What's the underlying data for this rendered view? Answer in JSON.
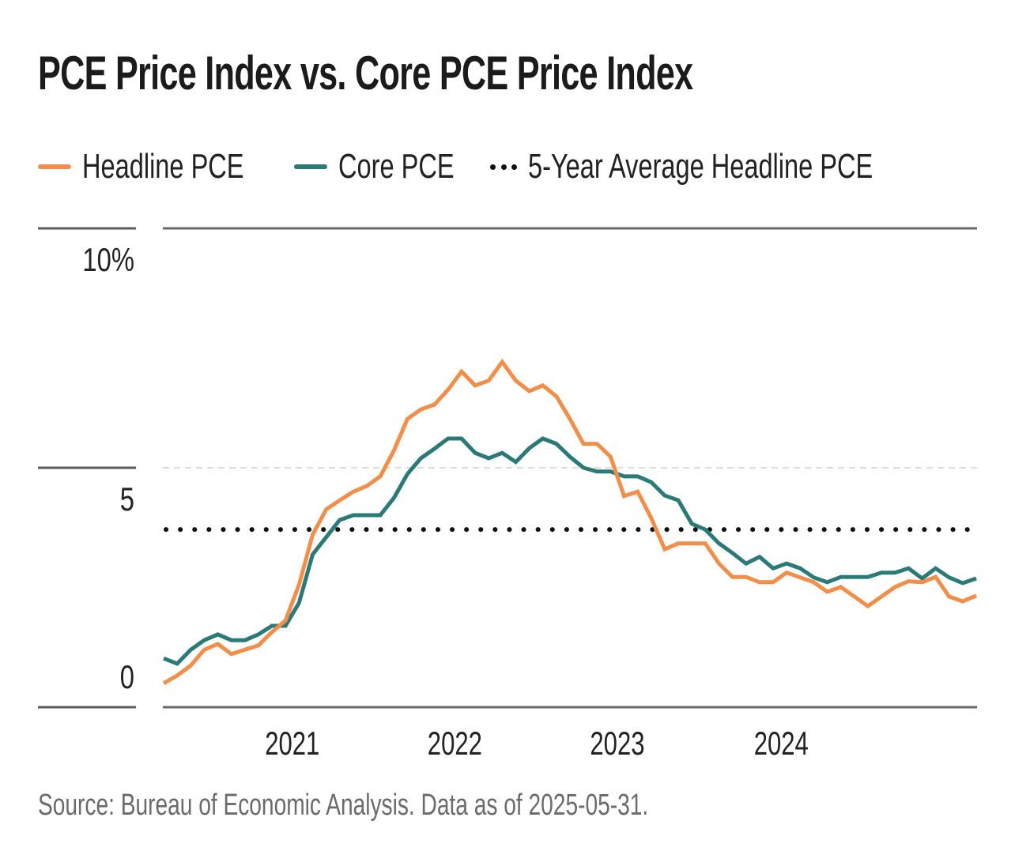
{
  "title": "PCE Price Index vs. Core PCE Price Index",
  "legend": {
    "items": [
      {
        "label": "Headline PCE",
        "style": "solid",
        "color": "#F28E48"
      },
      {
        "label": "Core PCE",
        "style": "solid",
        "color": "#2A7B78"
      },
      {
        "label": "5-Year Average Headline PCE",
        "style": "dotted",
        "color": "#111111"
      }
    ]
  },
  "source": "Source: Bureau of Economic Analysis. Data as of 2025-05-31.",
  "chart_data": {
    "type": "line",
    "title": "PCE Price Index vs. Core PCE Price Index",
    "xlabel": "",
    "ylabel": "",
    "ylim": [
      0,
      10
    ],
    "yticks": [
      {
        "value": 10,
        "label": "10%"
      },
      {
        "value": 5,
        "label": "5"
      },
      {
        "value": 0,
        "label": "0"
      }
    ],
    "grid": true,
    "legend_position": "top-left",
    "x_start": "2020-04",
    "x_end": "2025-04",
    "x_count": 61,
    "xticks": [
      {
        "index": 9.5,
        "label": "2021"
      },
      {
        "index": 21.5,
        "label": "2022"
      },
      {
        "index": 33.5,
        "label": "2023"
      },
      {
        "index": 45.6,
        "label": "2024"
      }
    ],
    "series": [
      {
        "name": "Headline PCE",
        "color": "#F28E48",
        "values": [
          0.5,
          0.66,
          0.87,
          1.2,
          1.32,
          1.11,
          1.2,
          1.29,
          1.57,
          1.81,
          2.56,
          3.6,
          4.13,
          4.32,
          4.5,
          4.62,
          4.82,
          5.36,
          6.02,
          6.22,
          6.32,
          6.63,
          7.01,
          6.72,
          6.82,
          7.21,
          6.82,
          6.6,
          6.72,
          6.49,
          6.02,
          5.5,
          5.5,
          5.23,
          4.41,
          4.5,
          3.95,
          3.3,
          3.42,
          3.42,
          3.42,
          3.0,
          2.72,
          2.72,
          2.61,
          2.61,
          2.81,
          2.71,
          2.61,
          2.41,
          2.51,
          2.31,
          2.11,
          2.31,
          2.51,
          2.63,
          2.61,
          2.72,
          2.31,
          2.21,
          2.33
        ]
      },
      {
        "name": "Core PCE",
        "color": "#2A7B78",
        "values": [
          1.02,
          0.91,
          1.2,
          1.4,
          1.52,
          1.4,
          1.4,
          1.52,
          1.7,
          1.7,
          2.18,
          3.19,
          3.55,
          3.91,
          4.01,
          4.01,
          4.01,
          4.37,
          4.87,
          5.2,
          5.4,
          5.61,
          5.61,
          5.31,
          5.2,
          5.31,
          5.12,
          5.41,
          5.61,
          5.5,
          5.23,
          5.0,
          4.92,
          4.92,
          4.82,
          4.82,
          4.7,
          4.42,
          4.32,
          3.83,
          3.71,
          3.42,
          3.22,
          3.0,
          3.14,
          2.9,
          3.0,
          2.9,
          2.71,
          2.61,
          2.72,
          2.72,
          2.72,
          2.81,
          2.81,
          2.9,
          2.69,
          2.9,
          2.71,
          2.59,
          2.69
        ]
      }
    ],
    "reference_lines": [
      {
        "name": "5-Year Average Headline PCE",
        "value": 3.71,
        "style": "dotted",
        "color": "#111111"
      }
    ]
  }
}
